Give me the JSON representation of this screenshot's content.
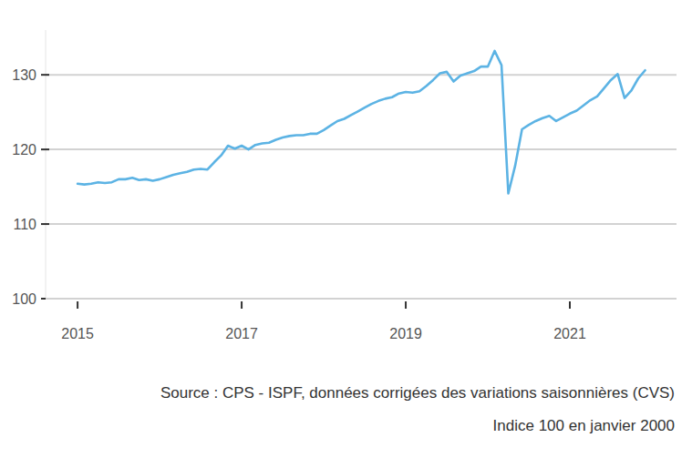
{
  "chart_data": {
    "type": "line",
    "x": [
      2015,
      2015.083,
      2015.167,
      2015.25,
      2015.333,
      2015.417,
      2015.5,
      2015.583,
      2015.667,
      2015.75,
      2015.833,
      2015.917,
      2016,
      2016.083,
      2016.167,
      2016.25,
      2016.333,
      2016.417,
      2016.5,
      2016.583,
      2016.667,
      2016.75,
      2016.833,
      2016.917,
      2017,
      2017.083,
      2017.167,
      2017.25,
      2017.333,
      2017.417,
      2017.5,
      2017.583,
      2017.667,
      2017.75,
      2017.833,
      2017.917,
      2018,
      2018.083,
      2018.167,
      2018.25,
      2018.333,
      2018.417,
      2018.5,
      2018.583,
      2018.667,
      2018.75,
      2018.833,
      2018.917,
      2019,
      2019.083,
      2019.167,
      2019.25,
      2019.333,
      2019.417,
      2019.5,
      2019.583,
      2019.667,
      2019.75,
      2019.833,
      2019.917,
      2020,
      2020.083,
      2020.167,
      2020.25,
      2020.333,
      2020.417,
      2020.5,
      2020.583,
      2020.667,
      2020.75,
      2020.833,
      2020.917,
      2021,
      2021.083,
      2021.167,
      2021.25,
      2021.333,
      2021.417,
      2021.5,
      2021.583,
      2021.667,
      2021.75,
      2021.833,
      2021.917
    ],
    "values": [
      115.4,
      115.3,
      115.4,
      115.6,
      115.5,
      115.6,
      116.0,
      116.0,
      116.2,
      115.9,
      116.0,
      115.8,
      116.0,
      116.3,
      116.6,
      116.8,
      117.0,
      117.3,
      117.4,
      117.3,
      118.3,
      119.2,
      120.5,
      120.1,
      120.5,
      120.0,
      120.6,
      120.8,
      120.9,
      121.3,
      121.6,
      121.8,
      121.9,
      121.9,
      122.1,
      122.1,
      122.6,
      123.2,
      123.8,
      124.1,
      124.6,
      125.1,
      125.6,
      126.1,
      126.5,
      126.8,
      127.0,
      127.5,
      127.7,
      127.6,
      127.8,
      128.5,
      129.3,
      130.2,
      130.4,
      129.1,
      129.9,
      130.2,
      130.5,
      131.1,
      131.1,
      133.2,
      131.3,
      114.1,
      117.8,
      122.7,
      123.3,
      123.8,
      124.2,
      124.5,
      123.8,
      124.3,
      124.8,
      125.2,
      125.9,
      126.6,
      127.1,
      128.2,
      129.3,
      130.1,
      126.9,
      127.9,
      129.5,
      130.6
    ],
    "color": "#5cb3e4",
    "xlim": [
      2014.61,
      2022.3
    ],
    "xticks": [
      2015,
      2017,
      2019,
      2021
    ],
    "ylim": [
      100,
      136
    ],
    "yticks": [
      100,
      110,
      120,
      130
    ],
    "grid": true,
    "source": "Source : CPS - ISPF, données corrigées des variations saisonnières (CVS)",
    "note": "Indice 100 en janvier 2000"
  }
}
